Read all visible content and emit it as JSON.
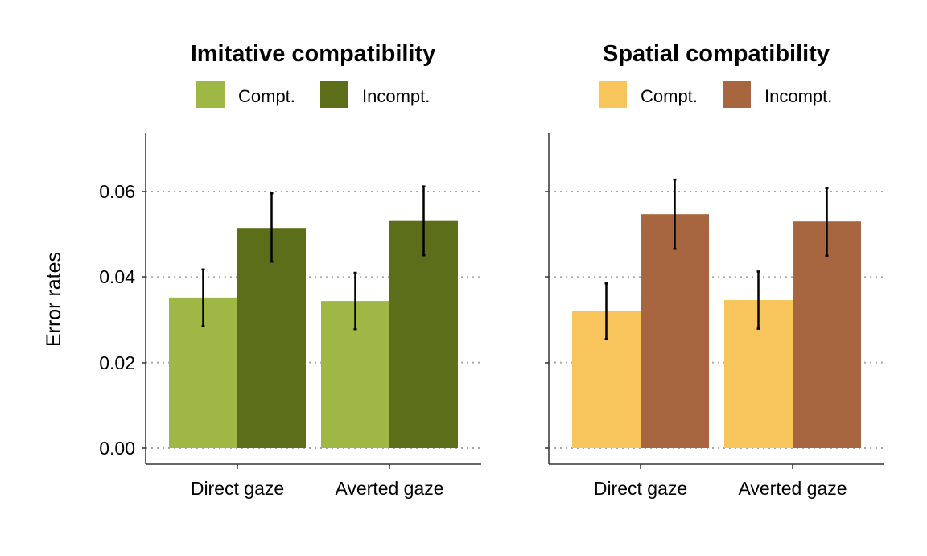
{
  "chart_data": [
    {
      "type": "bar",
      "title": "Imitative compatibility",
      "ylabel": "Error rates",
      "xlabel": "",
      "categories": [
        "Direct gaze",
        "Averted gaze"
      ],
      "ylim": [
        0,
        0.07
      ],
      "yticks": [
        "0.00",
        "0.02",
        "0.04",
        "0.06"
      ],
      "ytick_values": [
        0,
        0.02,
        0.04,
        0.06
      ],
      "grid": "horizontal dotted",
      "legend_position": "top",
      "series": [
        {
          "name": "Compt.",
          "color": "#9fb845",
          "values": [
            0.0352,
            0.0344
          ],
          "err_low": [
            0.0285,
            0.0278
          ],
          "err_high": [
            0.0418,
            0.041
          ]
        },
        {
          "name": "Incompt.",
          "color": "#5c6e1a",
          "values": [
            0.0515,
            0.0531
          ],
          "err_low": [
            0.0436,
            0.0451
          ],
          "err_high": [
            0.0596,
            0.0612
          ]
        }
      ]
    },
    {
      "type": "bar",
      "title": "Spatial compatibility",
      "ylabel": "",
      "xlabel": "",
      "categories": [
        "Direct gaze",
        "Averted gaze"
      ],
      "ylim": [
        0,
        0.07
      ],
      "yticks": [
        "0.00",
        "0.02",
        "0.04",
        "0.06"
      ],
      "ytick_values": [
        0,
        0.02,
        0.04,
        0.06
      ],
      "grid": "horizontal dotted",
      "legend_position": "top",
      "series": [
        {
          "name": "Compt.",
          "color": "#f7c55c",
          "values": [
            0.032,
            0.0346
          ],
          "err_low": [
            0.0255,
            0.0279
          ],
          "err_high": [
            0.0385,
            0.0413
          ]
        },
        {
          "name": "Incompt.",
          "color": "#a86640",
          "values": [
            0.0547,
            0.053
          ],
          "err_low": [
            0.0466,
            0.045
          ],
          "err_high": [
            0.0628,
            0.0608
          ]
        }
      ]
    }
  ]
}
